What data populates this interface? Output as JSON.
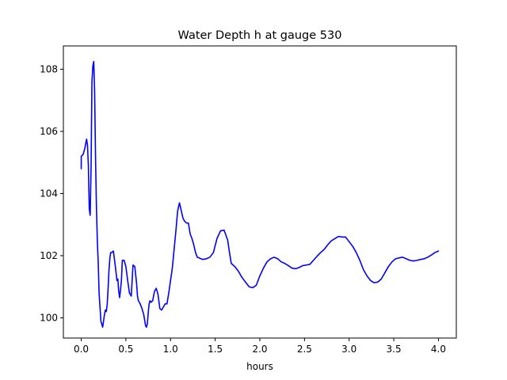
{
  "chart_data": {
    "type": "line",
    "title": "Water Depth h at gauge 530",
    "xlabel": "hours",
    "ylabel": "",
    "xlim": [
      -0.2,
      4.2
    ],
    "ylim": [
      99.35,
      108.75
    ],
    "xticks": [
      0.0,
      0.5,
      1.0,
      1.5,
      2.0,
      2.5,
      3.0,
      3.5,
      4.0
    ],
    "xtick_labels": [
      "0.0",
      "0.5",
      "1.0",
      "1.5",
      "2.0",
      "2.5",
      "3.0",
      "3.5",
      "4.0"
    ],
    "yticks": [
      100,
      102,
      104,
      106,
      108
    ],
    "ytick_labels": [
      "100",
      "102",
      "104",
      "106",
      "108"
    ],
    "grid": false,
    "legend": "none",
    "series": [
      {
        "color": "#0000ff",
        "x": [
          0.0,
          0.0,
          0.02,
          0.04,
          0.06,
          0.07,
          0.08,
          0.09,
          0.1,
          0.11,
          0.115,
          0.12,
          0.13,
          0.14,
          0.15,
          0.16,
          0.17,
          0.18,
          0.19,
          0.2,
          0.22,
          0.24,
          0.26,
          0.27,
          0.28,
          0.29,
          0.3,
          0.31,
          0.32,
          0.33,
          0.34,
          0.36,
          0.38,
          0.4,
          0.41,
          0.42,
          0.43,
          0.44,
          0.45,
          0.46,
          0.48,
          0.5,
          0.52,
          0.54,
          0.56,
          0.58,
          0.6,
          0.62,
          0.63,
          0.64,
          0.66,
          0.68,
          0.7,
          0.72,
          0.73,
          0.74,
          0.75,
          0.76,
          0.77,
          0.78,
          0.8,
          0.82,
          0.84,
          0.86,
          0.88,
          0.9,
          0.92,
          0.94,
          0.96,
          0.98,
          1.0,
          1.02,
          1.04,
          1.06,
          1.08,
          1.1,
          1.12,
          1.14,
          1.16,
          1.18,
          1.2,
          1.22,
          1.24,
          1.26,
          1.28,
          1.3,
          1.32,
          1.34,
          1.36,
          1.4,
          1.44,
          1.48,
          1.52,
          1.56,
          1.6,
          1.64,
          1.66,
          1.68,
          1.72,
          1.76,
          1.8,
          1.84,
          1.88,
          1.92,
          1.96,
          2.0,
          2.04,
          2.08,
          2.12,
          2.16,
          2.2,
          2.24,
          2.28,
          2.32,
          2.36,
          2.4,
          2.44,
          2.48,
          2.52,
          2.56,
          2.6,
          2.64,
          2.68,
          2.72,
          2.76,
          2.8,
          2.84,
          2.88,
          2.92,
          2.96,
          3.0,
          3.04,
          3.08,
          3.12,
          3.16,
          3.2,
          3.24,
          3.28,
          3.32,
          3.36,
          3.4,
          3.44,
          3.48,
          3.52,
          3.56,
          3.6,
          3.64,
          3.68,
          3.72,
          3.76,
          3.8,
          3.84,
          3.88,
          3.92,
          3.96,
          4.0
        ],
        "y": [
          104.8,
          105.2,
          105.25,
          105.45,
          105.75,
          105.55,
          104.9,
          103.5,
          103.3,
          104.8,
          106.2,
          107.6,
          108.1,
          108.25,
          107.3,
          105.2,
          103.6,
          102.5,
          101.8,
          100.8,
          99.9,
          99.7,
          100.1,
          100.25,
          100.2,
          100.4,
          100.9,
          101.5,
          101.9,
          102.1,
          102.1,
          102.15,
          101.7,
          101.2,
          101.25,
          100.85,
          100.65,
          100.9,
          101.2,
          101.85,
          101.85,
          101.65,
          101.2,
          100.8,
          100.7,
          101.7,
          101.65,
          101.1,
          100.7,
          100.55,
          100.45,
          100.3,
          100.1,
          99.75,
          99.7,
          99.8,
          100.15,
          100.45,
          100.55,
          100.5,
          100.55,
          100.85,
          100.95,
          100.75,
          100.3,
          100.25,
          100.35,
          100.45,
          100.45,
          100.8,
          101.2,
          101.6,
          102.2,
          102.8,
          103.45,
          103.7,
          103.45,
          103.2,
          103.1,
          103.05,
          103.05,
          102.7,
          102.55,
          102.35,
          102.1,
          101.95,
          101.93,
          101.9,
          101.88,
          101.9,
          101.95,
          102.1,
          102.55,
          102.8,
          102.82,
          102.5,
          102.1,
          101.75,
          101.65,
          101.5,
          101.3,
          101.15,
          101.0,
          100.97,
          101.05,
          101.35,
          101.6,
          101.8,
          101.9,
          101.95,
          101.9,
          101.8,
          101.75,
          101.68,
          101.6,
          101.58,
          101.62,
          101.68,
          101.7,
          101.72,
          101.85,
          101.98,
          102.1,
          102.2,
          102.35,
          102.48,
          102.55,
          102.62,
          102.6,
          102.6,
          102.45,
          102.3,
          102.1,
          101.85,
          101.55,
          101.35,
          101.2,
          101.13,
          101.15,
          101.25,
          101.45,
          101.65,
          101.8,
          101.9,
          101.93,
          101.95,
          101.9,
          101.85,
          101.83,
          101.85,
          101.88,
          101.9,
          101.95,
          102.02,
          102.1,
          102.15
        ]
      }
    ]
  }
}
